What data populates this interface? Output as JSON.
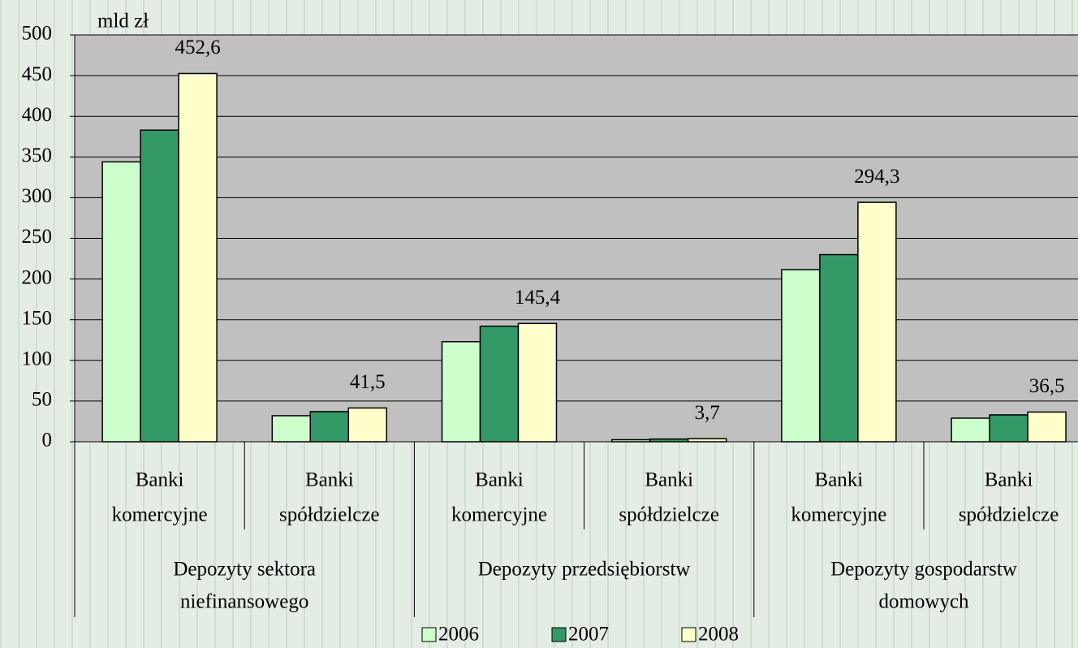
{
  "chart_data": {
    "type": "bar",
    "ylabel": "mld zł",
    "categories": [
      [
        "Banki",
        "komercyjne"
      ],
      [
        "Banki",
        "spółdzielcze"
      ],
      [
        "Banki",
        "komercyjne"
      ],
      [
        "Banki",
        "spółdzielcze"
      ],
      [
        "Banki",
        "komercyjne"
      ],
      [
        "Banki",
        "spółdzielcze"
      ]
    ],
    "groups": [
      [
        "Depozyty sektora",
        "niefinansowego"
      ],
      [
        "Depozyty przedsiębiorstw"
      ],
      [
        "Depozyty gospodarstw",
        "domowych"
      ]
    ],
    "series": [
      {
        "name": "2006",
        "color": "#ccffcc",
        "values": [
          344,
          32,
          123,
          2.5,
          211.5,
          29
        ]
      },
      {
        "name": "2007",
        "color": "#339966",
        "values": [
          383,
          37,
          142,
          3.3,
          230,
          33
        ]
      },
      {
        "name": "2008",
        "color": "#ffffcc",
        "values": [
          452.6,
          41.5,
          145.4,
          3.7,
          294.3,
          36.5
        ],
        "value_labels": [
          "452,6",
          "41,5",
          "145,4",
          "3,7",
          "294,3",
          "36,5"
        ]
      }
    ],
    "ylim": [
      0,
      500
    ],
    "yticks": [
      0,
      50,
      100,
      150,
      200,
      250,
      300,
      350,
      400,
      450,
      500
    ],
    "grid": true,
    "plot_color": "#c0c0c0"
  }
}
